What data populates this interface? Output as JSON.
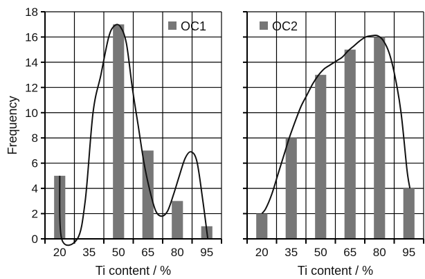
{
  "chart_data": [
    {
      "type": "bar",
      "panel": "left",
      "categories": [
        "20",
        "35",
        "50",
        "65",
        "80",
        "95"
      ],
      "series": [
        {
          "name": "OC1",
          "values": [
            5,
            0,
            17,
            7,
            3,
            1
          ]
        }
      ],
      "fit_curve": {
        "x": [
          20,
          21,
          29,
          33,
          37,
          41,
          45,
          48,
          51,
          54,
          57,
          60,
          63,
          66,
          69,
          72,
          75,
          78,
          81,
          84,
          87,
          90,
          93,
          95.5
        ],
        "y": [
          5,
          0,
          0,
          3,
          10,
          13,
          16,
          16.9,
          16.8,
          15.5,
          12,
          9,
          6,
          3.8,
          2.2,
          1.8,
          2.2,
          3.5,
          5,
          6.4,
          6.9,
          6.1,
          3,
          0
        ]
      },
      "xlabel": "Ti content / %",
      "ylabel": "Frequency",
      "ylim": [
        0,
        18
      ],
      "yticks": [
        "0",
        "2",
        "4",
        "6",
        "8",
        "10",
        "12",
        "14",
        "16",
        "18"
      ],
      "grid": true,
      "legend_position": "top-right",
      "colors": {
        "bar": "#777777",
        "curve": "#111111",
        "grid": "#000000"
      }
    },
    {
      "type": "bar",
      "panel": "right",
      "categories": [
        "20",
        "35",
        "50",
        "65",
        "80",
        "95"
      ],
      "series": [
        {
          "name": "OC2",
          "values": [
            2,
            8,
            13,
            15,
            16,
            4
          ]
        }
      ],
      "fit_curve": {
        "x": [
          20,
          22,
          25,
          28,
          31,
          34,
          37,
          40,
          43,
          46,
          49,
          52,
          55,
          58,
          61,
          64,
          67,
          70,
          73,
          76,
          79,
          82,
          85,
          88,
          91,
          94,
          95.5
        ],
        "y": [
          2,
          2.4,
          3.5,
          5,
          6.5,
          8,
          9.3,
          10.5,
          11.4,
          12.3,
          13,
          13.5,
          13.8,
          14.1,
          14.4,
          14.9,
          15.3,
          15.7,
          16,
          16.1,
          16.1,
          15.7,
          14.7,
          12.8,
          10,
          5.5,
          4
        ]
      },
      "xlabel": "Ti content / %",
      "ylabel": "",
      "ylim": [
        0,
        18
      ],
      "grid": true,
      "legend_position": "top-left",
      "colors": {
        "bar": "#777777",
        "curve": "#111111",
        "grid": "#000000"
      }
    }
  ]
}
